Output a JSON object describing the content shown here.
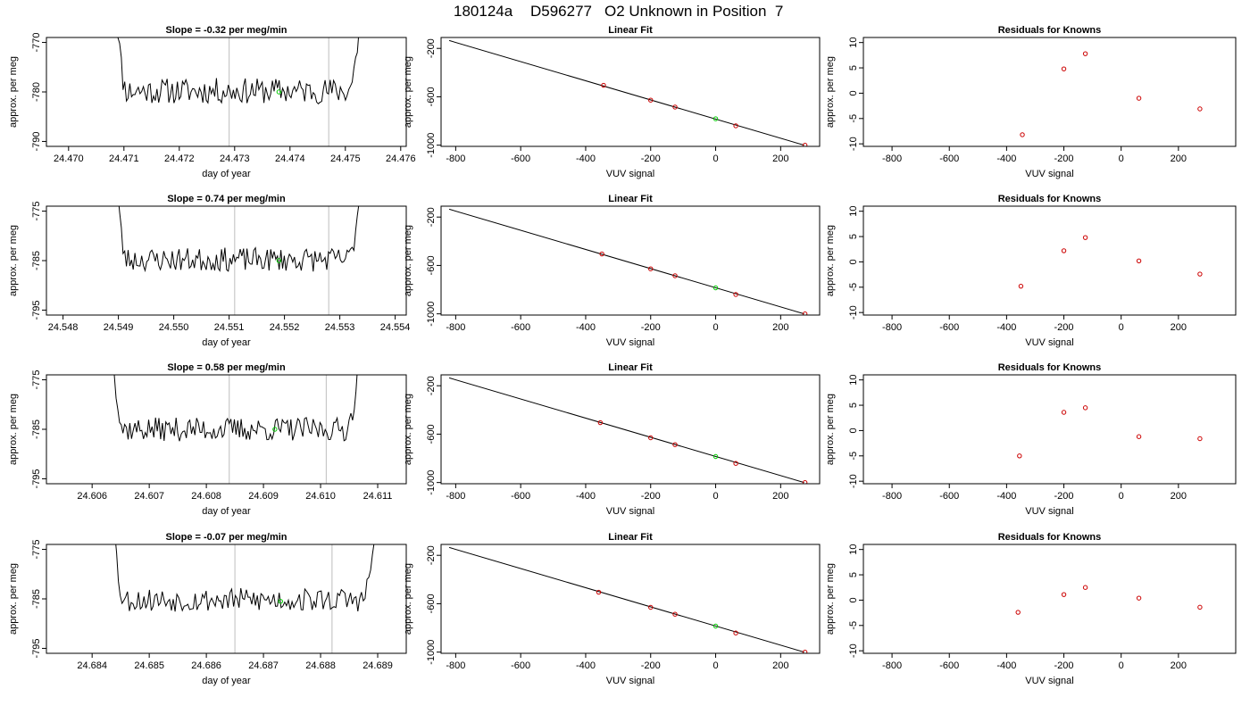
{
  "header": {
    "title_parts": [
      "180124a",
      "D596277",
      "O2 Unknown in Position  7"
    ]
  },
  "colors": {
    "trace": "#000000",
    "window_marker": "#c8c8c8",
    "unknown_point": "#00cc00",
    "known_point": "#cc0000",
    "fit_line": "#000000"
  },
  "chart_data": [
    {
      "type": "line",
      "title": "Slope =  -0.32  per meg/min",
      "xlabel": "day of year",
      "ylabel": "approx. per meg",
      "xlim": [
        24.4696,
        24.4761
      ],
      "ylim": [
        -791,
        -769
      ],
      "x_ticks": [
        "24.470",
        "24.471",
        "24.472",
        "24.473",
        "24.474",
        "24.475",
        "24.476"
      ],
      "y_ticks": [
        "-770",
        "-780",
        "-790"
      ],
      "y_tick_values": [
        -770,
        -780,
        -790
      ],
      "trace_start": 24.4708,
      "trace_end": 24.4754,
      "trace_baseline": -779.8,
      "trace_amplitude": 2.6,
      "trace_seed": 11,
      "markers": [
        24.4729,
        24.4747
      ],
      "unknown_point": {
        "x": 24.4738,
        "y": -780.0
      }
    },
    {
      "type": "scatter",
      "title": "Linear Fit",
      "xlabel": "VUV signal",
      "ylabel": "approx. per meg",
      "xlim": [
        -845,
        320
      ],
      "ylim": [
        -1010,
        -110
      ],
      "x_ticks": [
        "-800",
        "-600",
        "-400",
        "-200",
        "0",
        "200"
      ],
      "x_tick_values": [
        -800,
        -600,
        -400,
        -200,
        0,
        200
      ],
      "y_ticks": [
        "-200",
        "-600",
        "-1000"
      ],
      "y_tick_values": [
        -200,
        -600,
        -1000
      ],
      "line": {
        "x0": -820,
        "y0": -135,
        "x1": 272,
        "y1": -1000
      },
      "knowns": [
        {
          "x": -345,
          "y": -505
        },
        {
          "x": -200,
          "y": -628
        },
        {
          "x": -125,
          "y": -685
        },
        {
          "x": 62,
          "y": -840
        },
        {
          "x": 275,
          "y": -1000
        }
      ],
      "unknown_point": {
        "x": 0,
        "y": -782
      }
    },
    {
      "type": "scatter",
      "title": "Residuals for Knowns",
      "xlabel": "VUV signal",
      "ylabel": "approx. per meg",
      "xlim": [
        -900,
        400
      ],
      "ylim": [
        -10.5,
        11
      ],
      "x_ticks": [
        "-800",
        "-600",
        "-400",
        "-200",
        "0",
        "200"
      ],
      "x_tick_values": [
        -800,
        -600,
        -400,
        -200,
        0,
        200
      ],
      "y_ticks": [
        "10",
        "5",
        "0",
        "-5",
        "-10"
      ],
      "y_tick_values": [
        10,
        5,
        0,
        -5,
        -10
      ],
      "knowns": [
        {
          "x": -345,
          "y": -8.2
        },
        {
          "x": -200,
          "y": 4.8
        },
        {
          "x": -125,
          "y": 7.8
        },
        {
          "x": 62,
          "y": -1.0
        },
        {
          "x": 275,
          "y": -3.1
        }
      ]
    },
    {
      "type": "line",
      "title": "Slope =  0.74  per meg/min",
      "xlabel": "day of year",
      "ylabel": "approx. per meg",
      "xlim": [
        24.5477,
        24.5542
      ],
      "ylim": [
        -796,
        -774
      ],
      "x_ticks": [
        "24.548",
        "24.549",
        "24.550",
        "24.551",
        "24.552",
        "24.553",
        "24.554"
      ],
      "y_ticks": [
        "-775",
        "-785",
        "-795"
      ],
      "y_tick_values": [
        -775,
        -785,
        -795
      ],
      "trace_start": 24.5489,
      "trace_end": 24.5535,
      "trace_baseline": -784.8,
      "trace_amplitude": 2.4,
      "trace_seed": 23,
      "markers": [
        24.5511,
        24.5528
      ],
      "unknown_point": {
        "x": 24.5519,
        "y": -785.0
      }
    },
    {
      "type": "scatter",
      "title": "Linear Fit",
      "xlabel": "VUV signal",
      "ylabel": "approx. per meg",
      "xlim": [
        -845,
        320
      ],
      "ylim": [
        -1010,
        -110
      ],
      "x_ticks": [
        "-800",
        "-600",
        "-400",
        "-200",
        "0",
        "200"
      ],
      "x_tick_values": [
        -800,
        -600,
        -400,
        -200,
        0,
        200
      ],
      "y_ticks": [
        "-200",
        "-600",
        "-1000"
      ],
      "y_tick_values": [
        -200,
        -600,
        -1000
      ],
      "line": {
        "x0": -820,
        "y0": -135,
        "x1": 272,
        "y1": -1000
      },
      "knowns": [
        {
          "x": -350,
          "y": -505
        },
        {
          "x": -200,
          "y": -628
        },
        {
          "x": -125,
          "y": -685
        },
        {
          "x": 62,
          "y": -840
        },
        {
          "x": 275,
          "y": -1000
        }
      ],
      "unknown_point": {
        "x": 0,
        "y": -785
      }
    },
    {
      "type": "scatter",
      "title": "Residuals for Knowns",
      "xlabel": "VUV signal",
      "ylabel": "approx. per meg",
      "xlim": [
        -900,
        400
      ],
      "ylim": [
        -10.5,
        11
      ],
      "x_ticks": [
        "-800",
        "-600",
        "-400",
        "-200",
        "0",
        "200"
      ],
      "x_tick_values": [
        -800,
        -600,
        -400,
        -200,
        0,
        200
      ],
      "y_ticks": [
        "10",
        "5",
        "0",
        "-5",
        "-10"
      ],
      "y_tick_values": [
        10,
        5,
        0,
        -5,
        -10
      ],
      "knowns": [
        {
          "x": -350,
          "y": -4.8
        },
        {
          "x": -200,
          "y": 2.2
        },
        {
          "x": -125,
          "y": 4.8
        },
        {
          "x": 62,
          "y": 0.2
        },
        {
          "x": 275,
          "y": -2.4
        }
      ]
    },
    {
      "type": "line",
      "title": "Slope =  0.58  per meg/min",
      "xlabel": "day of year",
      "ylabel": "approx. per meg",
      "xlim": [
        24.6052,
        24.6115
      ],
      "ylim": [
        -796,
        -774
      ],
      "x_ticks": [
        "24.606",
        "24.607",
        "24.608",
        "24.609",
        "24.610",
        "24.611"
      ],
      "y_ticks": [
        "-775",
        "-785",
        "-795"
      ],
      "y_tick_values": [
        -775,
        -785,
        -795
      ],
      "trace_start": 24.6063,
      "trace_end": 24.6108,
      "trace_baseline": -785.0,
      "trace_amplitude": 2.4,
      "trace_seed": 37,
      "markers": [
        24.6084,
        24.6101
      ],
      "unknown_point": {
        "x": 24.6092,
        "y": -785.0
      }
    },
    {
      "type": "scatter",
      "title": "Linear Fit",
      "xlabel": "VUV signal",
      "ylabel": "approx. per meg",
      "xlim": [
        -845,
        320
      ],
      "ylim": [
        -1010,
        -110
      ],
      "x_ticks": [
        "-800",
        "-600",
        "-400",
        "-200",
        "0",
        "200"
      ],
      "x_tick_values": [
        -800,
        -600,
        -400,
        -200,
        0,
        200
      ],
      "y_ticks": [
        "-200",
        "-600",
        "-1000"
      ],
      "y_tick_values": [
        -200,
        -600,
        -1000
      ],
      "line": {
        "x0": -820,
        "y0": -135,
        "x1": 272,
        "y1": -1000
      },
      "knowns": [
        {
          "x": -355,
          "y": -505
        },
        {
          "x": -200,
          "y": -630
        },
        {
          "x": -125,
          "y": -687
        },
        {
          "x": 62,
          "y": -842
        },
        {
          "x": 275,
          "y": -1000
        }
      ],
      "unknown_point": {
        "x": 0,
        "y": -785
      }
    },
    {
      "type": "scatter",
      "title": "Residuals for Knowns",
      "xlabel": "VUV signal",
      "ylabel": "approx. per meg",
      "xlim": [
        -900,
        400
      ],
      "ylim": [
        -10.5,
        11
      ],
      "x_ticks": [
        "-800",
        "-600",
        "-400",
        "-200",
        "0",
        "200"
      ],
      "x_tick_values": [
        -800,
        -600,
        -400,
        -200,
        0,
        200
      ],
      "y_ticks": [
        "10",
        "5",
        "0",
        "-5",
        "-10"
      ],
      "y_tick_values": [
        10,
        5,
        0,
        -5,
        -10
      ],
      "knowns": [
        {
          "x": -355,
          "y": -5.0
        },
        {
          "x": -200,
          "y": 3.6
        },
        {
          "x": -125,
          "y": 4.5
        },
        {
          "x": 62,
          "y": -1.2
        },
        {
          "x": 275,
          "y": -1.6
        }
      ]
    },
    {
      "type": "line",
      "title": "Slope =  -0.07  per meg/min",
      "xlabel": "day of year",
      "ylabel": "approx. per meg",
      "xlim": [
        24.6832,
        24.6895
      ],
      "ylim": [
        -796,
        -774
      ],
      "x_ticks": [
        "24.684",
        "24.685",
        "24.686",
        "24.687",
        "24.688",
        "24.689"
      ],
      "y_ticks": [
        "-775",
        "-785",
        "-795"
      ],
      "y_tick_values": [
        -775,
        -785,
        -795
      ],
      "trace_start": 24.6843,
      "trace_end": 24.6891,
      "trace_baseline": -785.2,
      "trace_amplitude": 2.4,
      "trace_seed": 53,
      "markers": [
        24.6865,
        24.6882
      ],
      "unknown_point": {
        "x": 24.6873,
        "y": -785.5
      }
    },
    {
      "type": "scatter",
      "title": "Linear Fit",
      "xlabel": "VUV signal",
      "ylabel": "approx. per meg",
      "xlim": [
        -845,
        320
      ],
      "ylim": [
        -1010,
        -110
      ],
      "x_ticks": [
        "-800",
        "-600",
        "-400",
        "-200",
        "0",
        "200"
      ],
      "x_tick_values": [
        -800,
        -600,
        -400,
        -200,
        0,
        200
      ],
      "y_ticks": [
        "-200",
        "-600",
        "-1000"
      ],
      "y_tick_values": [
        -200,
        -600,
        -1000
      ],
      "line": {
        "x0": -820,
        "y0": -135,
        "x1": 272,
        "y1": -1000
      },
      "knowns": [
        {
          "x": -360,
          "y": -505
        },
        {
          "x": -200,
          "y": -630
        },
        {
          "x": -125,
          "y": -687
        },
        {
          "x": 62,
          "y": -842
        },
        {
          "x": 275,
          "y": -1000
        }
      ],
      "unknown_point": {
        "x": 0,
        "y": -785
      }
    },
    {
      "type": "scatter",
      "title": "Residuals for Knowns",
      "xlabel": "VUV signal",
      "ylabel": "approx. per meg",
      "xlim": [
        -900,
        400
      ],
      "ylim": [
        -10.5,
        11
      ],
      "x_ticks": [
        "-800",
        "-600",
        "-400",
        "-200",
        "0",
        "200"
      ],
      "x_tick_values": [
        -800,
        -600,
        -400,
        -200,
        0,
        200
      ],
      "y_ticks": [
        "10",
        "5",
        "0",
        "-5",
        "-10"
      ],
      "y_tick_values": [
        10,
        5,
        0,
        -5,
        -10
      ],
      "knowns": [
        {
          "x": -360,
          "y": -2.4
        },
        {
          "x": -200,
          "y": 1.1
        },
        {
          "x": -125,
          "y": 2.5
        },
        {
          "x": 62,
          "y": 0.4
        },
        {
          "x": 275,
          "y": -1.4
        }
      ]
    }
  ]
}
